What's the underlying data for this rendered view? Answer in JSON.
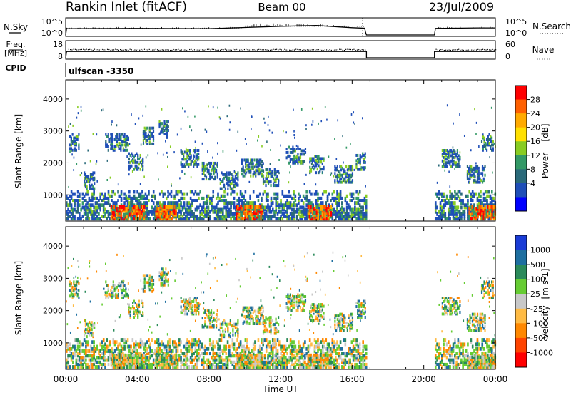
{
  "header": {
    "station": "Rankin Inlet (fitACF)",
    "beam": "Beam 00",
    "date": "23/Jul/2009"
  },
  "cpid_label": "ulfscan -3350",
  "time_axis": {
    "label": "Time UT",
    "ticks": [
      "00:00",
      "04:00",
      "08:00",
      "12:00",
      "16:00",
      "20:00",
      "00:00"
    ],
    "range_hours": [
      0,
      24
    ],
    "data_gap_hours": [
      16.8,
      20.6
    ]
  },
  "chart_data": [
    {
      "type": "line",
      "left_label": "N.Sky",
      "right_label": "N.Search",
      "left_ticks": [
        "10^5",
        "10^0"
      ],
      "right_ticks": [
        "10^5",
        "10^0"
      ],
      "x_hours": [
        0,
        0.05,
        0.1,
        4,
        8,
        10,
        12,
        14,
        16,
        16.7,
        16.75,
        16.8,
        20.6,
        20.65,
        23,
        24
      ],
      "y_log": [
        0,
        2.8,
        2.6,
        2.7,
        2.6,
        3.1,
        3.6,
        3.9,
        3.0,
        2.8,
        1.2,
        0,
        0,
        2.7,
        2.9,
        2.9
      ]
    },
    {
      "type": "scatter",
      "left_label": "Freq.",
      "left_unit": "[MHz]",
      "right_label": "Nave",
      "left_ticks": [
        "18",
        "8"
      ],
      "right_ticks": [
        "60",
        "0"
      ],
      "freq_mhz": 12,
      "nave_level": 32,
      "gap_hours": [
        16.8,
        20.6
      ]
    },
    {
      "type": "heatmap",
      "parameter": "Power",
      "unit": "[dB]",
      "ylabel": "Slant Range [km]",
      "yticks": [
        1000,
        2000,
        3000,
        4000
      ],
      "ylim": [
        180,
        4600
      ],
      "colorbar_ticks": [
        "28",
        "24",
        "20",
        "16",
        "12",
        "8",
        "4"
      ],
      "colorbar_colors": [
        "#ff0000",
        "#ff6000",
        "#ffaa00",
        "#ffe000",
        "#88cc22",
        "#339966",
        "#2a6a7a",
        "#1f4fb8",
        "#0000ff"
      ]
    },
    {
      "type": "heatmap",
      "parameter": "Velocity",
      "unit": "[m s-1]",
      "ylabel": "Slant Range [km]",
      "yticks": [
        1000,
        2000,
        3000,
        4000
      ],
      "ylim": [
        180,
        4600
      ],
      "colorbar_ticks": [
        "1000",
        "500",
        "100",
        "25",
        "-25",
        "-100",
        "-500",
        "-1000"
      ],
      "colorbar_colors": [
        "#1a3cd6",
        "#1e6fa0",
        "#2a8a5a",
        "#66cc33",
        "#c8c8c8",
        "#ffbb44",
        "#ff8800",
        "#ff4400",
        "#ff0000"
      ]
    }
  ],
  "colors": {
    "axis": "#000000",
    "no_data": "#ffffff"
  }
}
